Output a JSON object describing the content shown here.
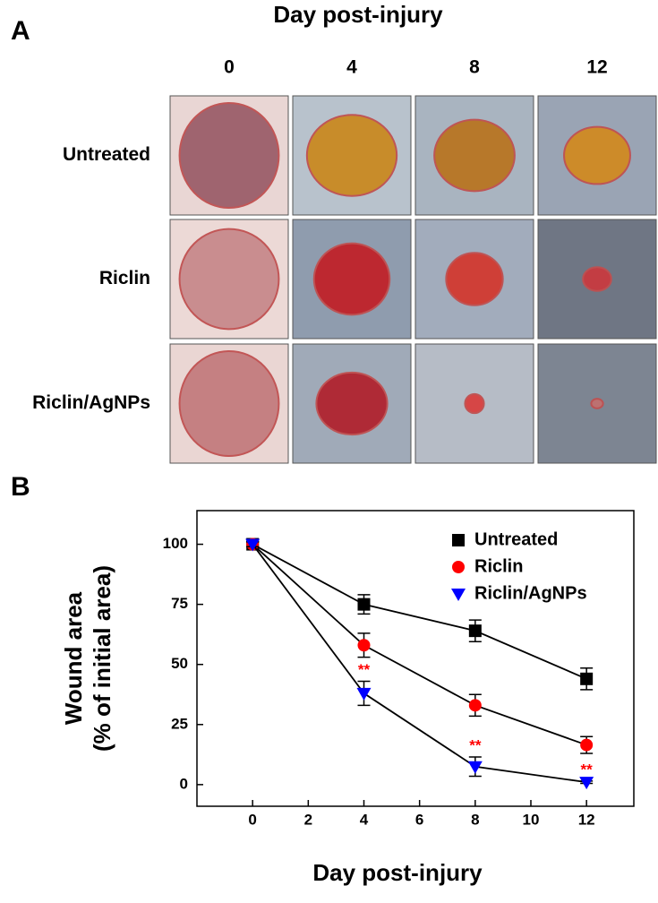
{
  "panel_a": {
    "label": "A",
    "title": "Day post-injury",
    "columns": [
      "0",
      "4",
      "8",
      "12"
    ],
    "rows": [
      "Untreated",
      "Riclin",
      "Riclin/AgNPs"
    ]
  },
  "panel_b": {
    "label": "B"
  },
  "chart_data": {
    "type": "line",
    "xlabel": "Day post-injury",
    "ylabel": [
      "Wound area",
      "(% of initial  area)"
    ],
    "x": [
      0,
      4,
      8,
      12
    ],
    "series": [
      {
        "name": "Untreated",
        "color": "#000000",
        "marker": "square",
        "values": [
          100,
          75,
          64,
          44
        ],
        "errors": [
          1,
          4,
          4.5,
          4.5
        ]
      },
      {
        "name": "Riclin",
        "color": "#ff0000",
        "marker": "circle",
        "values": [
          100,
          58,
          33,
          16.5
        ],
        "errors": [
          1,
          5,
          4.5,
          3.5
        ]
      },
      {
        "name": "Riclin/AgNPs",
        "color": "#0000ff",
        "marker": "triangle-down",
        "values": [
          100,
          38,
          7.5,
          1
        ],
        "errors": [
          1,
          5,
          4,
          0.5
        ],
        "value_notes": [
          null,
          "**",
          "**",
          "**"
        ],
        "note_color": "#ff0000"
      }
    ],
    "line_color": "#000000",
    "xlim": [
      -2,
      13.7
    ],
    "xticks": [
      0,
      2,
      4,
      6,
      8,
      10,
      12
    ],
    "ylim": [
      -9,
      114
    ],
    "yticks": [
      0,
      25,
      50,
      75,
      100
    ],
    "grid": false,
    "legend": "upper right"
  }
}
